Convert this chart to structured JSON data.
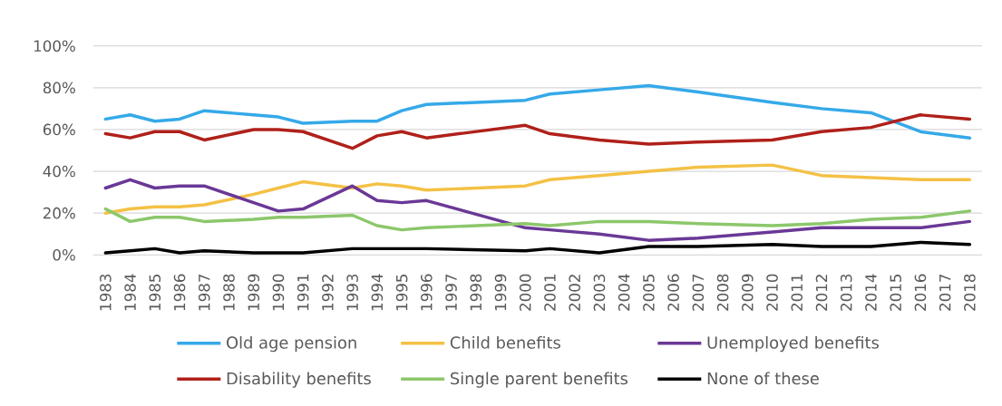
{
  "chart_data": {
    "type": "line",
    "x": [
      1983,
      1984,
      1985,
      1986,
      1987,
      1989,
      1990,
      1991,
      1993,
      1994,
      1995,
      1996,
      2000,
      2001,
      2003,
      2005,
      2007,
      2010,
      2012,
      2014,
      2016,
      2018
    ],
    "xlim": [
      1982.5,
      2018.5
    ],
    "xticks": [
      1983,
      1984,
      1985,
      1986,
      1987,
      1988,
      1989,
      1990,
      1991,
      1992,
      1993,
      1994,
      1995,
      1996,
      1997,
      1998,
      1999,
      2000,
      2001,
      2002,
      2003,
      2004,
      2005,
      2006,
      2007,
      2008,
      2009,
      2010,
      2011,
      2012,
      2013,
      2014,
      2015,
      2016,
      2017,
      2018
    ],
    "ylim": [
      0,
      100
    ],
    "yticks": [
      {
        "value": 0,
        "label": "0%"
      },
      {
        "value": 20,
        "label": "20%"
      },
      {
        "value": 40,
        "label": "40%"
      },
      {
        "value": 60,
        "label": "60%"
      },
      {
        "value": 80,
        "label": "80%"
      },
      {
        "value": 100,
        "label": "100%"
      }
    ],
    "grid": "y",
    "legend": "bottom",
    "series": [
      {
        "name": "Old age pension",
        "color": "#35a9e9",
        "values": [
          65,
          67,
          64,
          65,
          69,
          67,
          66,
          63,
          64,
          64,
          69,
          72,
          74,
          77,
          79,
          81,
          78,
          73,
          70,
          68,
          59,
          56
        ]
      },
      {
        "name": "Child benefits",
        "color": "#f4c145",
        "values": [
          20,
          22,
          23,
          23,
          24,
          29,
          32,
          35,
          32,
          34,
          33,
          31,
          33,
          36,
          38,
          40,
          42,
          43,
          38,
          37,
          36,
          36
        ]
      },
      {
        "name": "Unemployed benefits",
        "color": "#6a3896",
        "values": [
          32,
          36,
          32,
          33,
          33,
          25,
          21,
          22,
          33,
          26,
          25,
          26,
          13,
          12,
          10,
          7,
          8,
          11,
          13,
          13,
          13,
          16
        ]
      },
      {
        "name": "Disability benefits",
        "color": "#b0201a",
        "values": [
          58,
          56,
          59,
          59,
          55,
          60,
          60,
          59,
          51,
          57,
          59,
          56,
          62,
          58,
          55,
          53,
          54,
          55,
          59,
          61,
          67,
          65
        ]
      },
      {
        "name": "Single parent benefits",
        "color": "#8cc76b",
        "values": [
          22,
          16,
          18,
          18,
          16,
          17,
          18,
          18,
          19,
          14,
          12,
          13,
          15,
          14,
          16,
          16,
          15,
          14,
          15,
          17,
          18,
          21
        ]
      },
      {
        "name": "None of these",
        "color": "#000000",
        "values": [
          1,
          2,
          3,
          1,
          2,
          1,
          1,
          1,
          3,
          3,
          3,
          3,
          2,
          3,
          1,
          4,
          4,
          5,
          4,
          4,
          6,
          5
        ]
      }
    ]
  }
}
